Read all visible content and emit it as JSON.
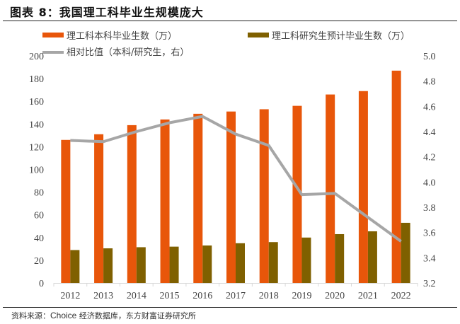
{
  "header": {
    "title": "图表 8：我国理工科毕业生规模庞大"
  },
  "footer": {
    "source_prefix": "资料来源：",
    "source_en": "Choice",
    "source_rest": " 经济数据库，东方财富证券研究所"
  },
  "colors": {
    "undergrad": "#E8560A",
    "grad": "#7F6000",
    "ratio": "#A6A6A6",
    "axis": "#D9D9D9"
  },
  "chart_data": {
    "type": "bar",
    "title": "我国理工科毕业生规模庞大",
    "categories": [
      "2012",
      "2013",
      "2014",
      "2015",
      "2016",
      "2017",
      "2018",
      "2019",
      "2020",
      "2021",
      "2022"
    ],
    "series": [
      {
        "name": "理工科本科毕业生数（万）",
        "type": "bar",
        "axis": "left",
        "values": [
          126,
          131,
          139,
          144,
          149,
          151,
          153,
          156,
          166,
          169,
          187
        ]
      },
      {
        "name": "理工科研究生预计毕业生数（万）",
        "type": "bar",
        "axis": "left",
        "values": [
          29,
          30.5,
          31.5,
          32,
          33,
          35,
          36,
          40,
          43,
          45.5,
          53
        ]
      },
      {
        "name": "相对比值（本科/研究生，右）",
        "type": "line",
        "axis": "right",
        "values": [
          4.33,
          4.32,
          4.4,
          4.47,
          4.52,
          4.38,
          4.29,
          3.9,
          3.91,
          3.72,
          3.53
        ]
      }
    ],
    "left_axis": {
      "ylim": [
        0,
        200
      ],
      "ticks": [
        "0",
        "20",
        "40",
        "60",
        "80",
        "100",
        "120",
        "140",
        "160",
        "180",
        "200"
      ]
    },
    "right_axis": {
      "ylim": [
        3.2,
        5.0
      ],
      "ticks": [
        "3.2",
        "3.4",
        "3.6",
        "3.8",
        "4.0",
        "4.2",
        "4.4",
        "4.6",
        "4.8",
        "5.0"
      ]
    },
    "xlabel": "",
    "ylabel": "",
    "grid": false,
    "legend_position": "top"
  }
}
